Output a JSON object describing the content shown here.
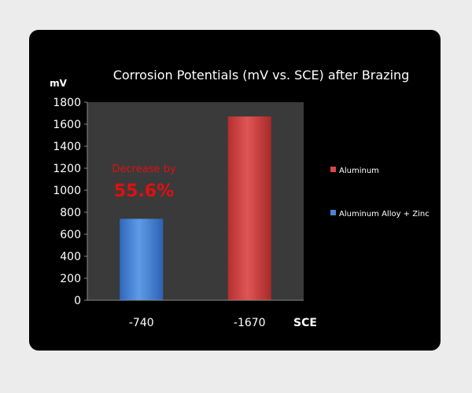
{
  "chart_data": {
    "type": "bar",
    "title": "Corrosion Potentials (mV vs. SCE) after Brazing",
    "ylabel": "mV",
    "xlabel": "SCE",
    "ylim": [
      0,
      1800
    ],
    "yticks": [
      0,
      200,
      400,
      600,
      800,
      1000,
      1200,
      1400,
      1600,
      1800
    ],
    "categories": [
      "-740",
      "-1670"
    ],
    "grid": false,
    "legend_position": "right",
    "series": [
      {
        "name": "Aluminum Alloy + Zinc",
        "color": "#4a86d8",
        "values": [
          740,
          null
        ]
      },
      {
        "name": "Aluminum",
        "color": "#d94848",
        "values": [
          null,
          1670
        ]
      }
    ],
    "annotation": {
      "line1": "Decrease by",
      "line2": "55.6%",
      "color": "#e01010"
    },
    "colors": {
      "panel": "#000000",
      "plot_area": "#3a3a3a",
      "text": "#ffffff"
    }
  }
}
